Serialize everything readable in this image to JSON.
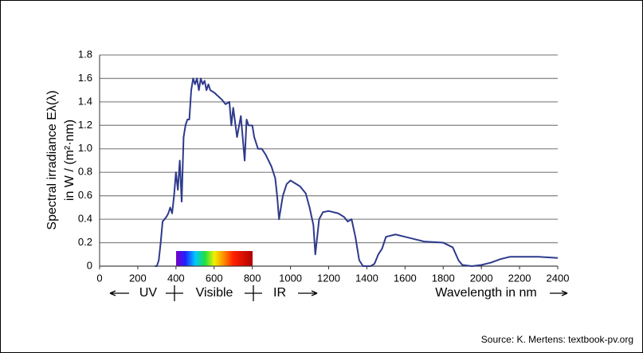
{
  "chart_data": {
    "type": "line",
    "y_label_line1": "Spectral irradiance Eλ(λ)",
    "y_label_line2": "in W / (m²·nm)",
    "x_label": "Wavelength in nm",
    "annotations": [
      "UV",
      "Visible",
      "IR"
    ],
    "source": "Source: K. Mertens: textbook-pv.org",
    "x": [
      290,
      300,
      310,
      320,
      330,
      340,
      350,
      360,
      370,
      380,
      390,
      400,
      410,
      420,
      430,
      440,
      450,
      460,
      470,
      480,
      490,
      500,
      510,
      520,
      530,
      540,
      550,
      560,
      570,
      580,
      600,
      620,
      640,
      660,
      680,
      690,
      700,
      720,
      740,
      760,
      770,
      780,
      800,
      810,
      820,
      830,
      850,
      870,
      900,
      920,
      930,
      940,
      950,
      960,
      980,
      1000,
      1050,
      1080,
      1100,
      1120,
      1130,
      1140,
      1150,
      1170,
      1200,
      1250,
      1280,
      1300,
      1320,
      1340,
      1360,
      1380,
      1400,
      1420,
      1440,
      1460,
      1480,
      1500,
      1550,
      1600,
      1700,
      1800,
      1850,
      1880,
      1900,
      1950,
      2000,
      2050,
      2100,
      2150,
      2200,
      2300,
      2400
    ],
    "series": [
      {
        "name": "Spectral irradiance",
        "color": "#2e3a8c",
        "values": [
          0,
          0,
          0.05,
          0.2,
          0.38,
          0.4,
          0.42,
          0.45,
          0.5,
          0.45,
          0.6,
          0.8,
          0.65,
          0.9,
          0.55,
          1.1,
          1.2,
          1.25,
          1.25,
          1.5,
          1.6,
          1.55,
          1.6,
          1.5,
          1.6,
          1.55,
          1.58,
          1.5,
          1.55,
          1.5,
          1.48,
          1.45,
          1.42,
          1.38,
          1.4,
          1.2,
          1.35,
          1.1,
          1.28,
          0.9,
          1.25,
          1.2,
          1.2,
          1.1,
          1.05,
          1.0,
          1.0,
          0.95,
          0.85,
          0.75,
          0.6,
          0.4,
          0.5,
          0.6,
          0.7,
          0.73,
          0.68,
          0.62,
          0.5,
          0.35,
          0.1,
          0.25,
          0.4,
          0.46,
          0.47,
          0.45,
          0.42,
          0.38,
          0.4,
          0.25,
          0.05,
          0,
          0,
          0,
          0.02,
          0.1,
          0.15,
          0.25,
          0.27,
          0.25,
          0.21,
          0.2,
          0.16,
          0.05,
          0.01,
          0,
          0.01,
          0.03,
          0.06,
          0.08,
          0.08,
          0.08,
          0.07
        ]
      }
    ],
    "xlim": [
      0,
      2400
    ],
    "xticks": [
      0,
      200,
      400,
      600,
      800,
      1000,
      1200,
      1400,
      1600,
      1800,
      2000,
      2200,
      2400
    ],
    "ylim": [
      0,
      1.8
    ],
    "yticks": [
      0,
      0.2,
      0.4,
      0.6,
      0.8,
      {
        "value": 1,
        "label": "1.0"
      },
      1.2,
      1.4,
      1.6,
      1.8
    ],
    "grid": true
  }
}
